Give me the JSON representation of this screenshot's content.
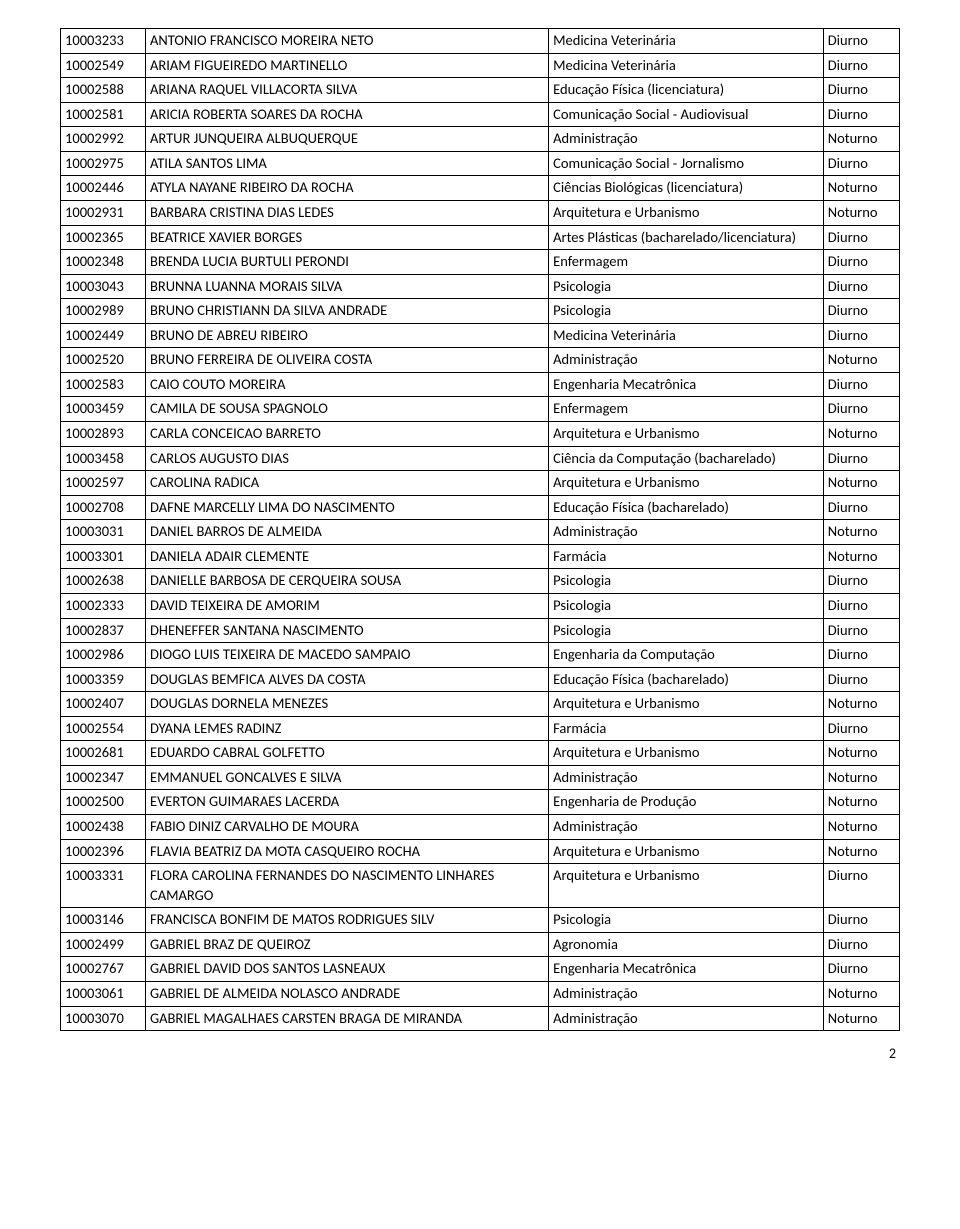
{
  "table": {
    "col_widths": {
      "id": 78,
      "name": 370,
      "course": 252,
      "shift": 70
    },
    "border_color": "#000000",
    "background_color": "#ffffff",
    "font_size": 14.5,
    "rows": [
      {
        "id": "10003233",
        "name": "ANTONIO FRANCISCO MOREIRA NETO",
        "course": "Medicina Veterinária",
        "shift": "Diurno"
      },
      {
        "id": "10002549",
        "name": "ARIAM FIGUEIREDO MARTINELLO",
        "course": "Medicina Veterinária",
        "shift": "Diurno"
      },
      {
        "id": "10002588",
        "name": "ARIANA RAQUEL VILLACORTA SILVA",
        "course": "Educação Física (licenciatura)",
        "shift": "Diurno"
      },
      {
        "id": "10002581",
        "name": "ARICIA ROBERTA SOARES DA ROCHA",
        "course": "Comunicação Social - Audiovisual",
        "shift": "Diurno"
      },
      {
        "id": "10002992",
        "name": "ARTUR JUNQUEIRA ALBUQUERQUE",
        "course": "Administração",
        "shift": "Noturno"
      },
      {
        "id": "10002975",
        "name": "ATILA SANTOS LIMA",
        "course": "Comunicação Social - Jornalismo",
        "shift": "Diurno"
      },
      {
        "id": "10002446",
        "name": "ATYLA NAYANE RIBEIRO DA ROCHA",
        "course": "Ciências Biológicas (licenciatura)",
        "shift": "Noturno"
      },
      {
        "id": "10002931",
        "name": "BARBARA CRISTINA DIAS LEDES",
        "course": "Arquitetura e Urbanismo",
        "shift": "Noturno"
      },
      {
        "id": "10002365",
        "name": "BEATRICE XAVIER BORGES",
        "course": "Artes Plásticas (bacharelado/licenciatura)",
        "shift": "Diurno"
      },
      {
        "id": "10002348",
        "name": "BRENDA LUCIA BURTULI PERONDI",
        "course": "Enfermagem",
        "shift": "Diurno"
      },
      {
        "id": "10003043",
        "name": "BRUNNA LUANNA MORAIS SILVA",
        "course": "Psicologia",
        "shift": "Diurno"
      },
      {
        "id": "10002989",
        "name": "BRUNO CHRISTIANN DA SILVA ANDRADE",
        "course": "Psicologia",
        "shift": "Diurno"
      },
      {
        "id": "10002449",
        "name": "BRUNO DE ABREU RIBEIRO",
        "course": "Medicina Veterinária",
        "shift": "Diurno"
      },
      {
        "id": "10002520",
        "name": "BRUNO FERREIRA DE OLIVEIRA COSTA",
        "course": "Administração",
        "shift": "Noturno"
      },
      {
        "id": "10002583",
        "name": "CAIO COUTO MOREIRA",
        "course": "Engenharia Mecatrônica",
        "shift": "Diurno"
      },
      {
        "id": "10003459",
        "name": "CAMILA DE SOUSA SPAGNOLO",
        "course": "Enfermagem",
        "shift": "Diurno"
      },
      {
        "id": "10002893",
        "name": "CARLA CONCEICAO BARRETO",
        "course": "Arquitetura e Urbanismo",
        "shift": "Noturno"
      },
      {
        "id": "10003458",
        "name": "CARLOS AUGUSTO DIAS",
        "course": "Ciência da Computação (bacharelado)",
        "shift": "Diurno"
      },
      {
        "id": "10002597",
        "name": "CAROLINA RADICA",
        "course": "Arquitetura e Urbanismo",
        "shift": "Noturno"
      },
      {
        "id": "10002708",
        "name": "DAFNE MARCELLY LIMA DO NASCIMENTO",
        "course": "Educação Física (bacharelado)",
        "shift": "Diurno"
      },
      {
        "id": "10003031",
        "name": "DANIEL BARROS DE ALMEIDA",
        "course": "Administração",
        "shift": "Noturno"
      },
      {
        "id": "10003301",
        "name": "DANIELA ADAIR CLEMENTE",
        "course": "Farmácia",
        "shift": "Noturno"
      },
      {
        "id": "10002638",
        "name": "DANIELLE BARBOSA DE CERQUEIRA SOUSA",
        "course": "Psicologia",
        "shift": "Diurno"
      },
      {
        "id": "10002333",
        "name": "DAVID TEIXEIRA DE AMORIM",
        "course": "Psicologia",
        "shift": "Diurno"
      },
      {
        "id": "10002837",
        "name": "DHENEFFER SANTANA NASCIMENTO",
        "course": "Psicologia",
        "shift": "Diurno"
      },
      {
        "id": "10002986",
        "name": "DIOGO LUIS TEIXEIRA DE MACEDO SAMPAIO",
        "course": "Engenharia da Computação",
        "shift": "Diurno"
      },
      {
        "id": "10003359",
        "name": "DOUGLAS BEMFICA ALVES DA COSTA",
        "course": "Educação Física (bacharelado)",
        "shift": "Diurno"
      },
      {
        "id": "10002407",
        "name": "DOUGLAS DORNELA MENEZES",
        "course": "Arquitetura e Urbanismo",
        "shift": "Noturno"
      },
      {
        "id": "10002554",
        "name": "DYANA LEMES RADINZ",
        "course": "Farmácia",
        "shift": "Diurno"
      },
      {
        "id": "10002681",
        "name": "EDUARDO CABRAL GOLFETTO",
        "course": "Arquitetura e Urbanismo",
        "shift": "Noturno"
      },
      {
        "id": "10002347",
        "name": "EMMANUEL GONCALVES E SILVA",
        "course": "Administração",
        "shift": "Noturno"
      },
      {
        "id": "10002500",
        "name": "EVERTON GUIMARAES LACERDA",
        "course": "Engenharia de Produção",
        "shift": "Noturno"
      },
      {
        "id": "10002438",
        "name": "FABIO DINIZ CARVALHO DE MOURA",
        "course": "Administração",
        "shift": "Noturno"
      },
      {
        "id": "10002396",
        "name": "FLAVIA BEATRIZ DA MOTA CASQUEIRO ROCHA",
        "course": "Arquitetura e Urbanismo",
        "shift": "Noturno"
      },
      {
        "id": "10003331",
        "name": "FLORA CAROLINA FERNANDES DO NASCIMENTO LINHARES CAMARGO",
        "course": "Arquitetura e Urbanismo",
        "shift": "Diurno"
      },
      {
        "id": "10003146",
        "name": "FRANCISCA BONFIM DE MATOS RODRIGUES SILV",
        "course": "Psicologia",
        "shift": "Diurno"
      },
      {
        "id": "10002499",
        "name": "GABRIEL BRAZ DE QUEIROZ",
        "course": "Agronomia",
        "shift": "Diurno"
      },
      {
        "id": "10002767",
        "name": "GABRIEL DAVID DOS SANTOS LASNEAUX",
        "course": "Engenharia Mecatrônica",
        "shift": "Diurno"
      },
      {
        "id": "10003061",
        "name": "GABRIEL DE ALMEIDA NOLASCO ANDRADE",
        "course": "Administração",
        "shift": "Noturno"
      },
      {
        "id": "10003070",
        "name": "GABRIEL MAGALHAES CARSTEN BRAGA DE MIRANDA",
        "course": "Administração",
        "shift": "Noturno"
      }
    ]
  },
  "page_number": "2"
}
